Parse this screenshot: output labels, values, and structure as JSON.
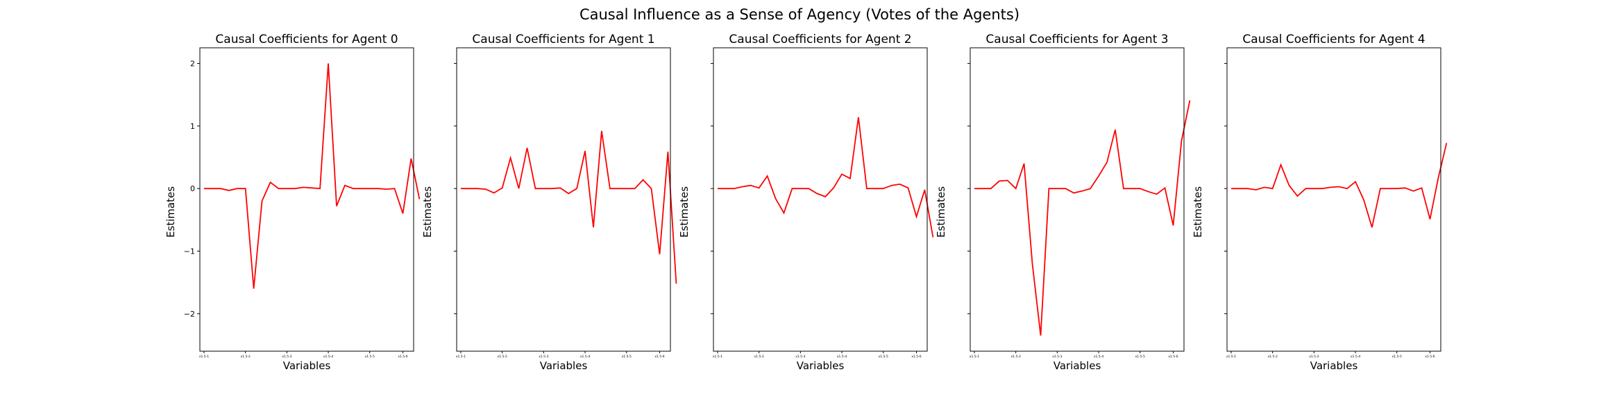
{
  "figure": {
    "title": "Causal Influence as a Sense of Agency (Votes of the Agents)"
  },
  "chart_data": [
    {
      "type": "line",
      "title": "Causal Coefficients for Agent 0",
      "xlabel": "Variables",
      "ylabel": "Estimates",
      "ylim": [
        -2.6,
        2.25
      ],
      "yticks": [
        2,
        1,
        0,
        -1,
        -2
      ],
      "ytick_labels": [
        "2",
        "1",
        "0",
        "−1",
        "−2"
      ],
      "xlim": [
        -0.5,
        25.3
      ],
      "xticks": [
        0,
        5,
        10,
        15,
        20,
        24
      ],
      "xtick_labels": [
        "x1.5-1",
        "x1.5-2",
        "x1.5-3",
        "x1.5-4",
        "x1.5-5",
        "x1.5-6"
      ],
      "grid": false,
      "series": [
        {
          "color": "#ff0000",
          "values": [
            0,
            0,
            0,
            -0.03,
            0,
            0,
            -1.6,
            -0.2,
            0.1,
            0,
            0,
            0,
            0.02,
            0.01,
            0,
            2.0,
            -0.28,
            0.05,
            0,
            0,
            0,
            0,
            -0.01,
            0,
            -0.4,
            0.48,
            -0.17
          ]
        }
      ]
    },
    {
      "type": "line",
      "title": "Causal Coefficients for Agent 1",
      "xlabel": "Variables",
      "ylabel": "Estimates",
      "ylim": [
        -2.6,
        2.25
      ],
      "yticks": [
        2,
        1,
        0,
        -1,
        -2
      ],
      "ytick_labels": [
        "",
        "",
        "",
        "",
        ""
      ],
      "xlim": [
        -0.5,
        25.3
      ],
      "xticks": [
        0,
        5,
        10,
        15,
        20,
        24
      ],
      "xtick_labels": [
        "x1.5-1",
        "x1.5-2",
        "x1.5-3",
        "x1.5-4",
        "x1.5-5",
        "x1.5-6"
      ],
      "grid": false,
      "series": [
        {
          "color": "#ff0000",
          "values": [
            0,
            0,
            0,
            -0.01,
            -0.07,
            0.01,
            0.49,
            0,
            0.65,
            0,
            0,
            0,
            0.01,
            -0.08,
            0,
            0.6,
            -0.62,
            0.92,
            0,
            0,
            0,
            0,
            0.14,
            0,
            -1.05,
            0.59,
            -1.52
          ]
        }
      ]
    },
    {
      "type": "line",
      "title": "Causal Coefficients for Agent 2",
      "xlabel": "Variables",
      "ylabel": "Estimates",
      "ylim": [
        -2.6,
        2.25
      ],
      "yticks": [
        2,
        1,
        0,
        -1,
        -2
      ],
      "ytick_labels": [
        "",
        "",
        "",
        "",
        ""
      ],
      "xlim": [
        -0.5,
        25.3
      ],
      "xticks": [
        0,
        5,
        10,
        15,
        20,
        24
      ],
      "xtick_labels": [
        "x1.5-1",
        "x1.5-2",
        "x1.5-3",
        "x1.5-4",
        "x1.5-5",
        "x1.5-6"
      ],
      "grid": false,
      "series": [
        {
          "color": "#ff0000",
          "values": [
            0,
            0,
            0,
            0.03,
            0.05,
            0.01,
            0.2,
            -0.16,
            -0.39,
            0,
            0,
            0,
            -0.08,
            -0.13,
            0.01,
            0.23,
            0.16,
            1.14,
            0,
            0,
            0,
            0.05,
            0.07,
            0.01,
            -0.45,
            -0.02,
            -0.78
          ]
        }
      ]
    },
    {
      "type": "line",
      "title": "Causal Coefficients for Agent 3",
      "xlabel": "Variables",
      "ylabel": "Estimates",
      "ylim": [
        -2.6,
        2.25
      ],
      "yticks": [
        2,
        1,
        0,
        -1,
        -2
      ],
      "ytick_labels": [
        "",
        "",
        "",
        "",
        ""
      ],
      "xlim": [
        -0.5,
        25.3
      ],
      "xticks": [
        0,
        5,
        10,
        15,
        20,
        24
      ],
      "xtick_labels": [
        "x1.5-1",
        "x1.5-2",
        "x1.5-3",
        "x1.5-4",
        "x1.5-5",
        "x1.5-6"
      ],
      "grid": false,
      "series": [
        {
          "color": "#ff0000",
          "values": [
            0,
            0,
            0,
            0.12,
            0.13,
            0,
            0.4,
            -1.2,
            -2.35,
            0,
            0,
            0,
            -0.07,
            -0.04,
            0,
            0.2,
            0.42,
            0.94,
            0,
            0,
            0,
            -0.05,
            -0.09,
            0.01,
            -0.59,
            0.76,
            1.41
          ]
        }
      ]
    },
    {
      "type": "line",
      "title": "Causal Coefficients for Agent 4",
      "xlabel": "Variables",
      "ylabel": "Estimates",
      "ylim": [
        -2.6,
        2.25
      ],
      "yticks": [
        2,
        1,
        0,
        -1,
        -2
      ],
      "ytick_labels": [
        "",
        "",
        "",
        "",
        ""
      ],
      "xlim": [
        -0.5,
        25.3
      ],
      "xticks": [
        0,
        5,
        10,
        15,
        20,
        24
      ],
      "xtick_labels": [
        "x1.5-1",
        "x1.5-2",
        "x1.5-3",
        "x1.5-4",
        "x1.5-5",
        "x1.5-6"
      ],
      "grid": false,
      "series": [
        {
          "color": "#ff0000",
          "values": [
            0,
            0,
            0,
            -0.02,
            0.02,
            0,
            0.38,
            0.05,
            -0.12,
            0,
            0,
            0,
            0.02,
            0.03,
            0,
            0.11,
            -0.18,
            -0.62,
            0,
            0,
            0,
            0.01,
            -0.04,
            0.01,
            -0.49,
            0.17,
            0.73
          ]
        }
      ]
    }
  ]
}
